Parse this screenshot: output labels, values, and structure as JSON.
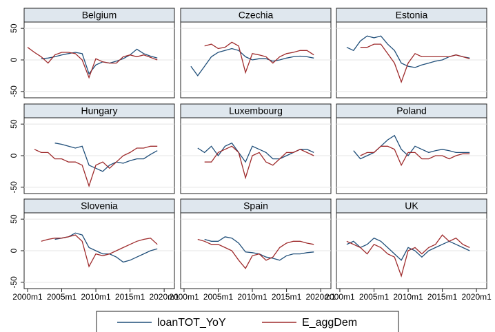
{
  "chart_data": [
    {
      "type": "line",
      "title": "Belgium",
      "x": [
        2000,
        2001,
        2002,
        2003,
        2004,
        2005,
        2006,
        2007,
        2008,
        2009,
        2010,
        2011,
        2012,
        2013,
        2014,
        2015,
        2016,
        2017,
        2018,
        2019
      ],
      "xlim": [
        1999.5,
        2021.5
      ],
      "ylim": [
        -60,
        60
      ],
      "yticks": [
        -50,
        0,
        50
      ],
      "grid": true,
      "series": [
        {
          "name": "loanTOT_YoY",
          "color": "#1f4e79",
          "values": [
            null,
            null,
            2,
            3,
            5,
            8,
            10,
            12,
            10,
            -22,
            -8,
            -3,
            -5,
            -2,
            2,
            8,
            17,
            10,
            6,
            3
          ]
        },
        {
          "name": "E_aggDem",
          "color": "#9e2a2b",
          "values": [
            20,
            12,
            5,
            -5,
            8,
            12,
            12,
            10,
            0,
            -28,
            2,
            -3,
            -5,
            -5,
            5,
            8,
            5,
            8,
            4,
            0
          ]
        }
      ]
    },
    {
      "type": "line",
      "title": "Czechia",
      "x": [
        2000,
        2001,
        2002,
        2003,
        2004,
        2005,
        2006,
        2007,
        2008,
        2009,
        2010,
        2011,
        2012,
        2013,
        2014,
        2015,
        2016,
        2017,
        2018,
        2019
      ],
      "xlim": [
        1999.5,
        2021.5
      ],
      "ylim": [
        -60,
        60
      ],
      "yticks": [
        -50,
        0,
        50
      ],
      "grid": true,
      "series": [
        {
          "name": "loanTOT_YoY",
          "color": "#1f4e79",
          "values": [
            null,
            -10,
            -25,
            -10,
            5,
            12,
            15,
            18,
            15,
            5,
            0,
            2,
            2,
            -2,
            0,
            3,
            5,
            6,
            5,
            3
          ]
        },
        {
          "name": "E_aggDem",
          "color": "#9e2a2b",
          "values": [
            null,
            null,
            null,
            22,
            25,
            18,
            20,
            28,
            22,
            -20,
            10,
            8,
            5,
            -5,
            5,
            10,
            12,
            15,
            15,
            8
          ]
        }
      ]
    },
    {
      "type": "line",
      "title": "Estonia",
      "x": [
        2000,
        2001,
        2002,
        2003,
        2004,
        2005,
        2006,
        2007,
        2008,
        2009,
        2010,
        2011,
        2012,
        2013,
        2014,
        2015,
        2016,
        2017,
        2018,
        2019
      ],
      "xlim": [
        1999.5,
        2021.5
      ],
      "ylim": [
        -60,
        60
      ],
      "yticks": [
        -50,
        0,
        50
      ],
      "grid": true,
      "series": [
        {
          "name": "loanTOT_YoY",
          "color": "#1f4e79",
          "values": [
            null,
            20,
            15,
            30,
            38,
            35,
            38,
            25,
            15,
            -5,
            -10,
            -12,
            -8,
            -5,
            -2,
            0,
            5,
            8,
            5,
            3
          ]
        },
        {
          "name": "E_aggDem",
          "color": "#9e2a2b",
          "values": [
            null,
            null,
            null,
            20,
            20,
            25,
            25,
            10,
            -5,
            -35,
            -5,
            10,
            5,
            5,
            5,
            5,
            5,
            8,
            5,
            2
          ]
        }
      ]
    },
    {
      "type": "line",
      "title": "Hungary",
      "x": [
        2000,
        2001,
        2002,
        2003,
        2004,
        2005,
        2006,
        2007,
        2008,
        2009,
        2010,
        2011,
        2012,
        2013,
        2014,
        2015,
        2016,
        2017,
        2018,
        2019
      ],
      "xlim": [
        1999.5,
        2021.5
      ],
      "ylim": [
        -60,
        60
      ],
      "yticks": [
        -50,
        0,
        50
      ],
      "grid": true,
      "series": [
        {
          "name": "loanTOT_YoY",
          "color": "#1f4e79",
          "values": [
            null,
            null,
            null,
            null,
            20,
            18,
            15,
            12,
            15,
            -15,
            -20,
            -25,
            -15,
            -10,
            -12,
            -8,
            -5,
            -5,
            2,
            8
          ]
        },
        {
          "name": "E_aggDem",
          "color": "#9e2a2b",
          "values": [
            null,
            10,
            5,
            5,
            -5,
            -5,
            -10,
            -10,
            -15,
            -48,
            -15,
            -10,
            -20,
            -10,
            0,
            5,
            12,
            12,
            15,
            15
          ]
        }
      ]
    },
    {
      "type": "line",
      "title": "Luxembourg",
      "x": [
        2000,
        2001,
        2002,
        2003,
        2004,
        2005,
        2006,
        2007,
        2008,
        2009,
        2010,
        2011,
        2012,
        2013,
        2014,
        2015,
        2016,
        2017,
        2018,
        2019
      ],
      "xlim": [
        1999.5,
        2021.5
      ],
      "ylim": [
        -60,
        60
      ],
      "yticks": [
        -50,
        0,
        50
      ],
      "grid": true,
      "series": [
        {
          "name": "loanTOT_YoY",
          "color": "#1f4e79",
          "values": [
            null,
            null,
            12,
            5,
            15,
            0,
            15,
            20,
            5,
            -10,
            15,
            10,
            5,
            -5,
            -5,
            0,
            5,
            10,
            10,
            5
          ]
        },
        {
          "name": "E_aggDem",
          "color": "#9e2a2b",
          "values": [
            null,
            null,
            null,
            -10,
            -10,
            5,
            10,
            15,
            5,
            -35,
            0,
            5,
            -10,
            -15,
            -5,
            5,
            5,
            10,
            5,
            0
          ]
        }
      ]
    },
    {
      "type": "line",
      "title": "Poland",
      "x": [
        2000,
        2001,
        2002,
        2003,
        2004,
        2005,
        2006,
        2007,
        2008,
        2009,
        2010,
        2011,
        2012,
        2013,
        2014,
        2015,
        2016,
        2017,
        2018,
        2019
      ],
      "xlim": [
        1999.5,
        2021.5
      ],
      "ylim": [
        -60,
        60
      ],
      "yticks": [
        -50,
        0,
        50
      ],
      "grid": true,
      "series": [
        {
          "name": "loanTOT_YoY",
          "color": "#1f4e79",
          "values": [
            null,
            null,
            8,
            -5,
            0,
            5,
            15,
            25,
            32,
            10,
            0,
            15,
            10,
            5,
            8,
            10,
            8,
            5,
            5,
            5
          ]
        },
        {
          "name": "E_aggDem",
          "color": "#9e2a2b",
          "values": [
            null,
            null,
            null,
            0,
            5,
            5,
            15,
            15,
            10,
            -15,
            5,
            5,
            -5,
            -5,
            0,
            0,
            -5,
            0,
            3,
            3
          ]
        }
      ]
    },
    {
      "type": "line",
      "title": "Slovenia",
      "x": [
        2000,
        2001,
        2002,
        2003,
        2004,
        2005,
        2006,
        2007,
        2008,
        2009,
        2010,
        2011,
        2012,
        2013,
        2014,
        2015,
        2016,
        2017,
        2018,
        2019
      ],
      "xlim": [
        1999.5,
        2021.5
      ],
      "ylim": [
        -60,
        60
      ],
      "yticks": [
        -50,
        0,
        50
      ],
      "grid": true,
      "xticks": [
        {
          "value": 2000,
          "label": "2000m1"
        },
        {
          "value": 2005,
          "label": "2005m1"
        },
        {
          "value": 2010,
          "label": "2010m1"
        },
        {
          "value": 2015,
          "label": "2015m1"
        },
        {
          "value": 2020,
          "label": "2020m1"
        }
      ],
      "series": [
        {
          "name": "loanTOT_YoY",
          "color": "#1f4e79",
          "values": [
            null,
            null,
            null,
            null,
            18,
            20,
            22,
            28,
            25,
            5,
            0,
            -5,
            -5,
            -10,
            -18,
            -15,
            -10,
            -5,
            0,
            3
          ]
        },
        {
          "name": "E_aggDem",
          "color": "#9e2a2b",
          "values": [
            null,
            null,
            15,
            18,
            20,
            20,
            22,
            25,
            15,
            -25,
            -5,
            -8,
            -5,
            0,
            5,
            10,
            15,
            18,
            20,
            10
          ]
        }
      ]
    },
    {
      "type": "line",
      "title": "Spain",
      "x": [
        2000,
        2001,
        2002,
        2003,
        2004,
        2005,
        2006,
        2007,
        2008,
        2009,
        2010,
        2011,
        2012,
        2013,
        2014,
        2015,
        2016,
        2017,
        2018,
        2019
      ],
      "xlim": [
        1999.5,
        2021.5
      ],
      "ylim": [
        -60,
        60
      ],
      "yticks": [
        -50,
        0,
        50
      ],
      "grid": true,
      "xticks": [
        {
          "value": 2000,
          "label": "2000m1"
        },
        {
          "value": 2005,
          "label": "2005m1"
        },
        {
          "value": 2010,
          "label": "2010m1"
        },
        {
          "value": 2015,
          "label": "2015m1"
        },
        {
          "value": 2020,
          "label": "2020m1"
        }
      ],
      "series": [
        {
          "name": "loanTOT_YoY",
          "color": "#1f4e79",
          "values": [
            null,
            null,
            null,
            18,
            15,
            15,
            22,
            20,
            12,
            -2,
            -3,
            -5,
            -10,
            -12,
            -15,
            -8,
            -5,
            -5,
            -3,
            -2
          ]
        },
        {
          "name": "E_aggDem",
          "color": "#9e2a2b",
          "values": [
            null,
            null,
            18,
            15,
            10,
            10,
            5,
            0,
            -15,
            -28,
            -8,
            -5,
            -15,
            -10,
            5,
            12,
            15,
            15,
            12,
            10
          ]
        }
      ]
    },
    {
      "type": "line",
      "title": "UK",
      "x": [
        2000,
        2001,
        2002,
        2003,
        2004,
        2005,
        2006,
        2007,
        2008,
        2009,
        2010,
        2011,
        2012,
        2013,
        2014,
        2015,
        2016,
        2017,
        2018,
        2019
      ],
      "xlim": [
        1999.5,
        2021.5
      ],
      "ylim": [
        -60,
        60
      ],
      "yticks": [
        -50,
        0,
        50
      ],
      "grid": true,
      "xticks": [
        {
          "value": 2000,
          "label": "2000m1"
        },
        {
          "value": 2005,
          "label": "2005m1"
        },
        {
          "value": 2010,
          "label": "2010m1"
        },
        {
          "value": 2015,
          "label": "2015m1"
        },
        {
          "value": 2020,
          "label": "2020m1"
        }
      ],
      "series": [
        {
          "name": "loanTOT_YoY",
          "color": "#1f4e79",
          "values": [
            null,
            10,
            15,
            5,
            10,
            20,
            15,
            5,
            -5,
            -15,
            5,
            0,
            -10,
            0,
            5,
            10,
            15,
            10,
            5,
            0
          ]
        },
        {
          "name": "E_aggDem",
          "color": "#9e2a2b",
          "values": [
            null,
            15,
            10,
            5,
            -5,
            10,
            5,
            -5,
            -10,
            -40,
            0,
            5,
            -5,
            5,
            10,
            25,
            15,
            20,
            10,
            5
          ]
        }
      ]
    }
  ]
}
